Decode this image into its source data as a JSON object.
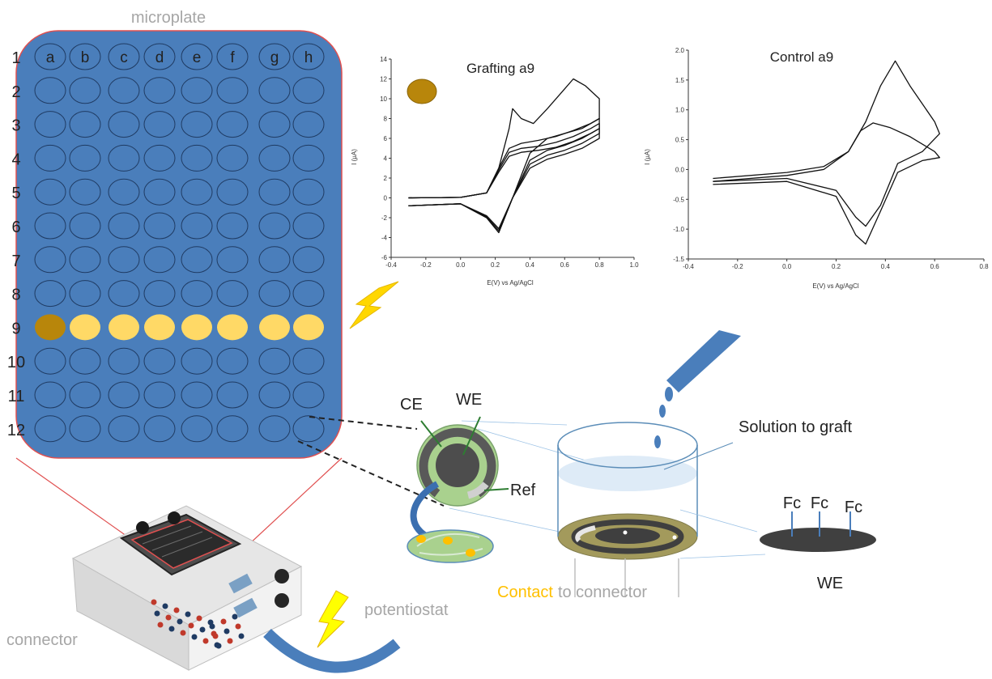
{
  "microplate": {
    "title": "microplate",
    "columns": [
      "a",
      "b",
      "c",
      "d",
      "e",
      "f",
      "g",
      "h"
    ],
    "rows": [
      "1",
      "2",
      "3",
      "4",
      "5",
      "6",
      "7",
      "8",
      "9",
      "10",
      "11",
      "12"
    ],
    "highlight_row": "9",
    "selected_well": "a9",
    "colors": {
      "plate": "#4a7ebb",
      "border": "#e05050",
      "active_well": "#ffd966",
      "grafted_well": "#b8860b"
    }
  },
  "chart_data": [
    {
      "type": "line",
      "title": "Grafting a9",
      "xlabel": "E(V) vs Ag/AgCl",
      "ylabel": "I (µA)",
      "xlim": [
        -0.4,
        1.0
      ],
      "ylim": [
        -6,
        14
      ],
      "xticks": [
        "-0.4",
        "-0.2",
        "0.0",
        "0.2",
        "0.4",
        "0.6",
        "0.8",
        "1.0"
      ],
      "yticks": [
        "-6",
        "-4",
        "-2",
        "0",
        "2",
        "4",
        "6",
        "8",
        "10",
        "12",
        "14"
      ],
      "series": [
        {
          "x": [
            -0.3,
            0.0,
            0.15,
            0.22,
            0.28,
            0.3,
            0.35,
            0.42,
            0.5,
            0.6,
            0.65,
            0.72,
            0.8,
            0.8,
            0.7,
            0.6,
            0.5,
            0.4,
            0.3,
            0.22,
            0.15,
            0.0,
            -0.3
          ],
          "y": [
            0,
            0.05,
            0.5,
            3,
            7,
            9,
            8,
            7.5,
            9,
            11,
            12,
            11.3,
            10,
            8,
            7,
            6.5,
            6,
            4.5,
            0,
            -3.5,
            -2,
            -0.6,
            -0.8
          ]
        },
        {
          "x": [
            -0.3,
            0.0,
            0.15,
            0.22,
            0.28,
            0.35,
            0.45,
            0.55,
            0.65,
            0.75,
            0.8,
            0.8,
            0.7,
            0.6,
            0.5,
            0.4,
            0.3,
            0.22,
            0.15,
            0.0,
            -0.3
          ],
          "y": [
            0,
            0.05,
            0.5,
            3,
            5,
            5.5,
            5.8,
            6.2,
            6.8,
            7.5,
            8,
            7,
            6,
            5.3,
            4.8,
            3.8,
            0,
            -3.5,
            -2,
            -0.6,
            -0.8
          ]
        },
        {
          "x": [
            -0.3,
            0.0,
            0.15,
            0.22,
            0.28,
            0.35,
            0.45,
            0.55,
            0.65,
            0.75,
            0.8,
            0.8,
            0.7,
            0.6,
            0.5,
            0.4,
            0.3,
            0.22,
            0.15,
            0.0,
            -0.3
          ],
          "y": [
            0,
            0.05,
            0.5,
            2.8,
            4.6,
            5,
            5.2,
            5.6,
            6.2,
            7,
            7.5,
            6.5,
            5.5,
            4.8,
            4.3,
            3.4,
            0,
            -3.3,
            -1.9,
            -0.6,
            -0.8
          ]
        },
        {
          "x": [
            -0.3,
            0.0,
            0.15,
            0.22,
            0.28,
            0.35,
            0.45,
            0.55,
            0.65,
            0.75,
            0.8,
            0.8,
            0.7,
            0.6,
            0.5,
            0.4,
            0.3,
            0.22,
            0.15,
            0.0,
            -0.3
          ],
          "y": [
            0,
            0.05,
            0.5,
            2.6,
            4.2,
            4.6,
            4.8,
            5.1,
            5.7,
            6.5,
            7,
            6,
            5,
            4.4,
            3.9,
            3,
            0,
            -3.1,
            -1.8,
            -0.6,
            -0.8
          ]
        }
      ]
    },
    {
      "type": "line",
      "title": "Control a9",
      "xlabel": "E(V) vs Ag/AgCl",
      "ylabel": "I (µA)",
      "xlim": [
        -0.4,
        0.8
      ],
      "ylim": [
        -1.5,
        2.0
      ],
      "xticks": [
        "-0.4",
        "-0.2",
        "0.0",
        "0.2",
        "0.4",
        "0.6",
        "0.8"
      ],
      "yticks": [
        "-1.5",
        "-1.0",
        "-0.5",
        "0.0",
        "0.5",
        "1.0",
        "1.5",
        "2.0"
      ],
      "series": [
        {
          "x": [
            -0.3,
            0.0,
            0.15,
            0.25,
            0.32,
            0.38,
            0.44,
            0.5,
            0.6,
            0.62,
            0.55,
            0.45,
            0.38,
            0.32,
            0.28,
            0.2,
            0.0,
            -0.3
          ],
          "y": [
            -0.15,
            -0.05,
            0.05,
            0.3,
            0.8,
            1.4,
            1.82,
            1.4,
            0.8,
            0.6,
            0.3,
            0.1,
            -0.6,
            -0.95,
            -0.8,
            -0.35,
            -0.15,
            -0.2
          ]
        },
        {
          "x": [
            -0.3,
            0.0,
            0.15,
            0.25,
            0.3,
            0.35,
            0.42,
            0.5,
            0.6,
            0.62,
            0.55,
            0.45,
            0.38,
            0.32,
            0.28,
            0.2,
            0.0,
            -0.3
          ],
          "y": [
            -0.2,
            -0.1,
            0.0,
            0.3,
            0.65,
            0.78,
            0.7,
            0.55,
            0.3,
            0.2,
            0.15,
            -0.05,
            -0.7,
            -1.25,
            -1.1,
            -0.45,
            -0.2,
            -0.25
          ]
        }
      ]
    }
  ],
  "electrode": {
    "ce": "CE",
    "we": "WE",
    "ref": "Ref"
  },
  "cell": {
    "solution": "Solution to graft",
    "contact_word": "Contact",
    "contact_rest": "to connector"
  },
  "we_detail": {
    "fc1": "Fc",
    "fc2": "Fc",
    "fc3": "Fc",
    "label": "WE"
  },
  "device": {
    "potentiostat": "potentiostat",
    "connector": "connector"
  }
}
